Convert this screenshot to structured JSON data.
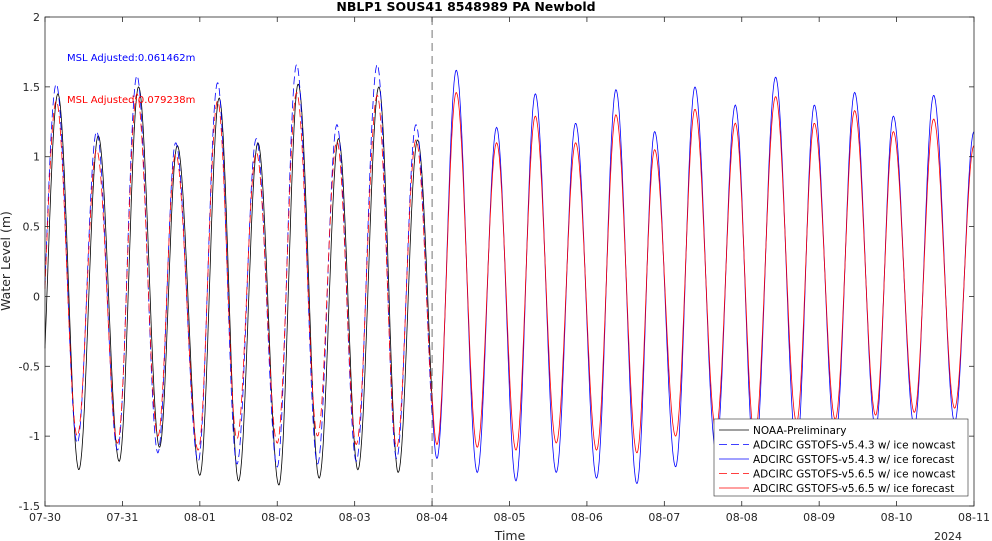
{
  "chart_data": {
    "type": "line",
    "title": "NBLP1 SOUS41 8548989 PA Newbold",
    "xlabel": "Time",
    "ylabel": "Water Level (m)",
    "ylim": [
      -1.5,
      2
    ],
    "yticks": [
      "-1.5",
      "-1",
      "-0.5",
      "0",
      "0.5",
      "1",
      "1.5",
      "2"
    ],
    "xlim": [
      "2024-07-30",
      "2024-08-11"
    ],
    "xticks": [
      "07-30",
      "07-31",
      "08-01",
      "08-02",
      "08-03",
      "08-04",
      "08-05",
      "08-06",
      "08-07",
      "08-08",
      "08-09",
      "08-10",
      "08-11"
    ],
    "year_label": "2024",
    "nowcast_forecast_boundary": "2024-08-04",
    "annotations": [
      {
        "text": "MSL Adjusted:0.061462m",
        "color": "#0000ff"
      },
      {
        "text": "MSL Adjusted:0.079238m",
        "color": "#ff0000"
      }
    ],
    "legend": {
      "position": "bottom-right"
    },
    "grid": false,
    "series": [
      {
        "name": "NOAA-Preliminary",
        "color": "#000000",
        "style": "solid",
        "width": 0.8,
        "x_range": [
          "2024-07-30",
          "2024-08-04"
        ],
        "highs": [
          [
            "07-30 04:00",
            1.45
          ],
          [
            "07-30 16:30",
            1.15
          ],
          [
            "07-31 05:00",
            1.5
          ],
          [
            "07-31 17:00",
            1.08
          ],
          [
            "08-01 06:00",
            1.42
          ],
          [
            "08-01 18:00",
            1.1
          ],
          [
            "08-02 06:30",
            1.52
          ],
          [
            "08-02 19:00",
            1.13
          ],
          [
            "08-03 07:30",
            1.5
          ],
          [
            "08-03 19:30",
            1.12
          ],
          [
            "08-04 08:00",
            1.45
          ]
        ],
        "lows": [
          [
            "07-30 10:30",
            -1.24
          ],
          [
            "07-30 23:00",
            -1.18
          ],
          [
            "07-31 11:30",
            -1.08
          ],
          [
            "08-01 00:00",
            -1.28
          ],
          [
            "08-01 12:00",
            -1.32
          ],
          [
            "08-02 00:30",
            -1.35
          ],
          [
            "08-02 13:00",
            -1.3
          ],
          [
            "08-03 01:00",
            -1.24
          ],
          [
            "08-03 13:30",
            -1.26
          ],
          [
            "08-04 02:00",
            -1.25
          ]
        ]
      },
      {
        "name": "ADCIRC GSTOFS-v5.4.3 w/ ice nowcast",
        "color": "#0000ff",
        "style": "dashed",
        "width": 0.8,
        "x_range": [
          "2024-07-30",
          "2024-08-04"
        ],
        "highs": [
          [
            "07-30 03:30",
            1.52
          ],
          [
            "07-30 16:00",
            1.18
          ],
          [
            "07-31 04:30",
            1.58
          ],
          [
            "07-31 16:30",
            1.1
          ],
          [
            "08-01 05:30",
            1.53
          ],
          [
            "08-01 17:30",
            1.13
          ],
          [
            "08-02 06:00",
            1.66
          ],
          [
            "08-02 18:30",
            1.23
          ],
          [
            "08-03 07:00",
            1.66
          ],
          [
            "08-03 19:00",
            1.23
          ],
          [
            "08-04 07:30",
            1.62
          ]
        ],
        "lows": [
          [
            "07-30 10:00",
            -1.05
          ],
          [
            "07-30 22:30",
            -1.1
          ],
          [
            "07-31 11:00",
            -1.12
          ],
          [
            "07-31 23:30",
            -1.18
          ],
          [
            "08-01 11:30",
            -1.2
          ],
          [
            "08-02 00:00",
            -1.22
          ],
          [
            "08-02 12:30",
            -1.2
          ],
          [
            "08-03 00:30",
            -1.18
          ],
          [
            "08-03 13:00",
            -1.16
          ],
          [
            "08-04 01:30",
            -1.16
          ]
        ]
      },
      {
        "name": "ADCIRC GSTOFS-v5.4.3 w/ ice forecast",
        "color": "#0000ff",
        "style": "solid",
        "width": 0.8,
        "x_range": [
          "2024-08-04",
          "2024-08-11"
        ],
        "highs": [
          [
            "08-04 07:30",
            1.62
          ],
          [
            "08-04 20:00",
            1.21
          ],
          [
            "08-05 08:00",
            1.45
          ],
          [
            "08-05 20:30",
            1.24
          ],
          [
            "08-06 09:00",
            1.48
          ],
          [
            "08-06 21:00",
            1.18
          ],
          [
            "08-07 09:30",
            1.5
          ],
          [
            "08-07 22:00",
            1.37
          ],
          [
            "08-08 10:30",
            1.57
          ],
          [
            "08-08 22:30",
            1.37
          ],
          [
            "08-09 11:00",
            1.46
          ],
          [
            "08-09 23:00",
            1.29
          ],
          [
            "08-10 11:30",
            1.44
          ],
          [
            "08-11 00:00",
            1.18
          ]
        ],
        "lows": [
          [
            "08-04 01:30",
            -1.16
          ],
          [
            "08-04 14:00",
            -1.26
          ],
          [
            "08-05 02:00",
            -1.32
          ],
          [
            "08-05 14:30",
            -1.26
          ],
          [
            "08-06 03:00",
            -1.3
          ],
          [
            "08-06 15:30",
            -1.34
          ],
          [
            "08-07 03:30",
            -1.22
          ],
          [
            "08-07 16:00",
            -1.1
          ],
          [
            "08-08 04:00",
            -1.18
          ],
          [
            "08-08 17:00",
            -1.1
          ],
          [
            "08-09 05:00",
            -1.02
          ],
          [
            "08-09 17:30",
            -0.95
          ],
          [
            "08-10 05:30",
            -0.93
          ],
          [
            "08-10 18:00",
            -0.9
          ]
        ]
      },
      {
        "name": "ADCIRC GSTOFS-v5.6.5 w/ ice nowcast",
        "color": "#ff0000",
        "style": "dashed",
        "width": 0.8,
        "x_range": [
          "2024-07-30",
          "2024-08-04"
        ],
        "highs": [
          [
            "07-30 03:30",
            1.4
          ],
          [
            "07-30 16:00",
            1.05
          ],
          [
            "07-31 04:30",
            1.45
          ],
          [
            "07-31 16:30",
            1.02
          ],
          [
            "08-01 05:30",
            1.4
          ],
          [
            "08-01 17:30",
            1.03
          ],
          [
            "08-02 06:00",
            1.46
          ],
          [
            "08-02 18:30",
            1.11
          ],
          [
            "08-03 07:00",
            1.44
          ],
          [
            "08-03 19:00",
            1.12
          ],
          [
            "08-04 07:30",
            1.46
          ]
        ],
        "lows": [
          [
            "07-30 10:00",
            -1.0
          ],
          [
            "07-30 22:30",
            -1.05
          ],
          [
            "07-31 11:00",
            -1.0
          ],
          [
            "07-31 23:30",
            -1.1
          ],
          [
            "08-01 11:30",
            -1.02
          ],
          [
            "08-02 00:00",
            -1.05
          ],
          [
            "08-02 12:30",
            -1.0
          ],
          [
            "08-03 00:30",
            -1.06
          ],
          [
            "08-03 13:00",
            -1.08
          ],
          [
            "08-04 01:30",
            -1.06
          ]
        ]
      },
      {
        "name": "ADCIRC GSTOFS-v5.6.5 w/ ice forecast",
        "color": "#ff0000",
        "style": "solid",
        "width": 0.8,
        "x_range": [
          "2024-08-04",
          "2024-08-11"
        ],
        "highs": [
          [
            "08-04 07:30",
            1.46
          ],
          [
            "08-04 20:00",
            1.1
          ],
          [
            "08-05 08:00",
            1.29
          ],
          [
            "08-05 20:30",
            1.1
          ],
          [
            "08-06 09:00",
            1.3
          ],
          [
            "08-06 21:00",
            1.05
          ],
          [
            "08-07 09:30",
            1.34
          ],
          [
            "08-07 22:00",
            1.24
          ],
          [
            "08-08 10:30",
            1.43
          ],
          [
            "08-08 22:30",
            1.24
          ],
          [
            "08-09 11:00",
            1.33
          ],
          [
            "08-09 23:00",
            1.18
          ],
          [
            "08-10 11:30",
            1.27
          ],
          [
            "08-11 00:00",
            1.08
          ]
        ],
        "lows": [
          [
            "08-04 01:30",
            -1.06
          ],
          [
            "08-04 14:00",
            -1.08
          ],
          [
            "08-05 02:00",
            -1.1
          ],
          [
            "08-05 14:30",
            -1.05
          ],
          [
            "08-06 03:00",
            -1.1
          ],
          [
            "08-06 15:30",
            -1.12
          ],
          [
            "08-07 03:30",
            -1.0
          ],
          [
            "08-07 16:00",
            -0.95
          ],
          [
            "08-08 04:00",
            -1.0
          ],
          [
            "08-08 17:00",
            -0.9
          ],
          [
            "08-09 05:00",
            -0.88
          ],
          [
            "08-09 17:30",
            -0.85
          ],
          [
            "08-10 05:30",
            -0.83
          ],
          [
            "08-10 18:00",
            -0.8
          ]
        ]
      }
    ]
  }
}
